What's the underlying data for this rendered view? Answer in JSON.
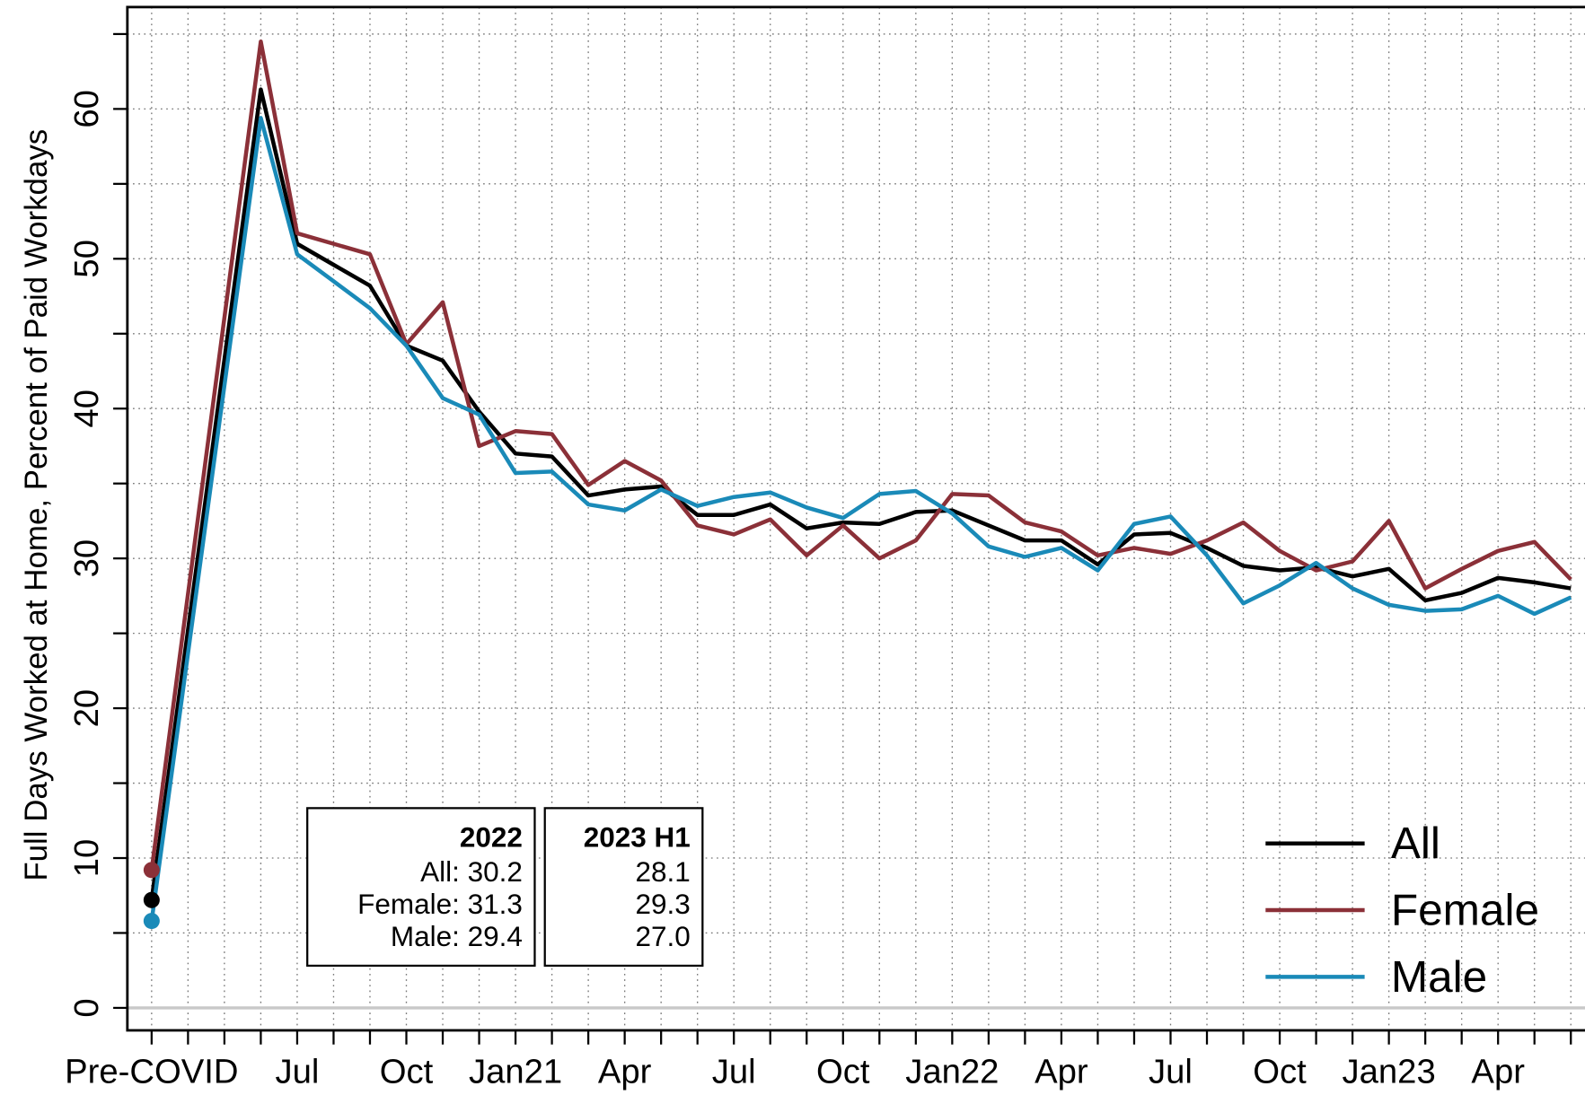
{
  "chart_data": {
    "type": "line",
    "y_label": "Full Days Worked at Home, Percent of Paid Workdays",
    "categories": [
      "Pre-COVID",
      null,
      "Jul",
      null,
      null,
      "Oct",
      null,
      null,
      "Jan21",
      null,
      null,
      "Apr",
      null,
      null,
      "Jul",
      null,
      null,
      "Oct",
      null,
      null,
      "Jan22",
      null,
      null,
      "Apr",
      null,
      null,
      "Jul",
      null,
      null,
      "Oct",
      null,
      null,
      "Jan23",
      null,
      null,
      "Apr",
      null,
      null
    ],
    "series": [
      {
        "name": "All",
        "color": "#000000",
        "values": [
          7.2,
          61.3,
          51.0,
          49.6,
          48.2,
          44.2,
          43.2,
          39.8,
          37.0,
          36.8,
          34.2,
          34.6,
          34.8,
          32.9,
          32.9,
          33.6,
          32.0,
          32.4,
          32.3,
          33.1,
          33.2,
          32.2,
          31.2,
          31.2,
          29.6,
          31.6,
          31.7,
          30.7,
          29.5,
          29.2,
          29.4,
          28.8,
          29.3,
          27.2,
          27.7,
          28.7,
          28.4,
          28.0
        ]
      },
      {
        "name": "Female",
        "color": "#8b3038",
        "values": [
          9.2,
          64.5,
          51.7,
          51.0,
          50.3,
          44.3,
          47.1,
          37.5,
          38.5,
          38.3,
          34.9,
          36.5,
          35.2,
          32.2,
          31.6,
          32.6,
          30.2,
          32.2,
          30.0,
          31.2,
          34.3,
          34.2,
          32.4,
          31.8,
          30.2,
          30.7,
          30.3,
          31.2,
          32.4,
          30.5,
          29.2,
          29.8,
          32.5,
          28.0,
          29.3,
          30.5,
          31.1,
          28.6
        ]
      },
      {
        "name": "Male",
        "color": "#1a8ab8",
        "values": [
          5.8,
          59.4,
          50.3,
          48.5,
          46.7,
          44.2,
          40.7,
          39.6,
          35.7,
          35.8,
          33.6,
          33.2,
          34.6,
          33.5,
          34.1,
          34.4,
          33.4,
          32.7,
          34.3,
          34.5,
          33.0,
          30.8,
          30.1,
          30.7,
          29.2,
          32.3,
          32.8,
          30.2,
          27.0,
          28.2,
          29.7,
          28.0,
          26.9,
          26.5,
          26.6,
          27.5,
          26.3,
          27.4
        ]
      }
    ],
    "ylim": [
      -1.5,
      66.8
    ],
    "yticks": [
      0,
      10,
      20,
      30,
      40,
      50,
      60
    ],
    "grid": true,
    "legend": "bottom-right",
    "inset": [
      {
        "header": "2022",
        "lines": [
          "All: 30.2",
          "Female: 31.3",
          "Male: 29.4"
        ]
      },
      {
        "header": "2023 H1",
        "lines": [
          "28.1",
          "29.3",
          "27.0"
        ]
      }
    ]
  }
}
